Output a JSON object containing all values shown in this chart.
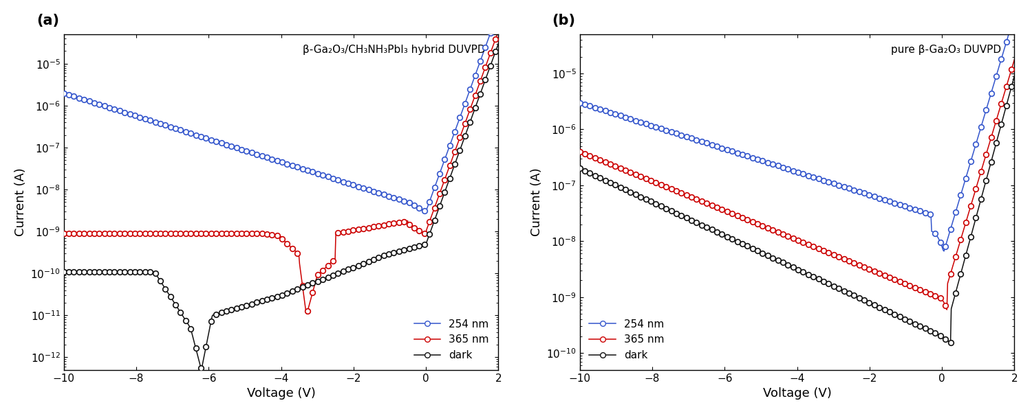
{
  "panel_a_title": "β-Ga₂O₃/CH₃NH₃PbI₃ hybrid DUVPD",
  "panel_b_title": "pure β-Ga₂O₃ DUVPD",
  "xlabel": "Voltage (V)",
  "ylabel": "Current (A)",
  "xlim": [
    -10,
    2
  ],
  "panel_a_ylim": [
    5e-13,
    5e-05
  ],
  "panel_b_ylim": [
    5e-11,
    5e-05
  ],
  "xticks": [
    -10,
    -8,
    -6,
    -4,
    -2,
    0,
    2
  ],
  "color_blue": "#3355CC",
  "color_red": "#CC0000",
  "color_black": "#111111",
  "legend_labels": [
    "254 nm",
    "365 nm",
    "dark"
  ],
  "panel_a_label": "(a)",
  "panel_b_label": "(b)",
  "marker_step": 7,
  "marker_size": 5.5,
  "line_width": 1.1
}
